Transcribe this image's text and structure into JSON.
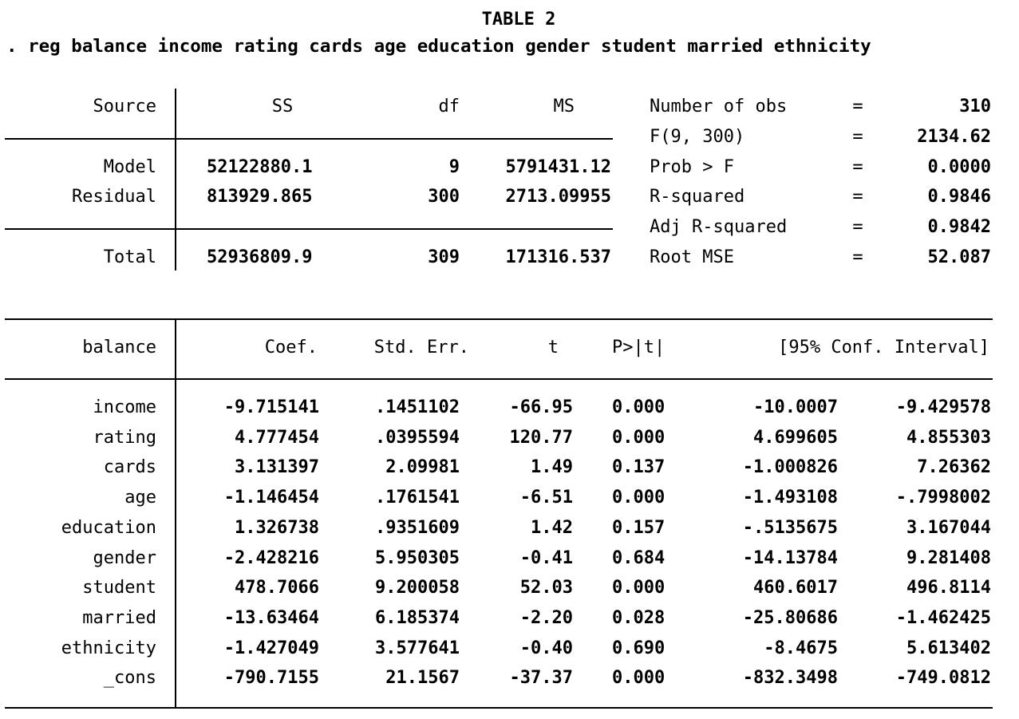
{
  "title": "TABLE 2",
  "command": ". reg balance income rating cards age education gender student married ethnicity",
  "anova": {
    "headers": {
      "source": "Source",
      "ss": "SS",
      "df": "df",
      "ms": "MS"
    },
    "rows": [
      {
        "source": "Model",
        "ss": "52122880.1",
        "df": "9",
        "ms": "5791431.12"
      },
      {
        "source": "Residual",
        "ss": "813929.865",
        "df": "300",
        "ms": "2713.09955"
      },
      {
        "source": "Total",
        "ss": "52936809.9",
        "df": "309",
        "ms": "171316.537"
      }
    ]
  },
  "stats": [
    {
      "label": "Number of obs",
      "eq": "=",
      "value": "310"
    },
    {
      "label": "F(9, 300)",
      "eq": "=",
      "value": "2134.62"
    },
    {
      "label": "Prob > F",
      "eq": "=",
      "value": "0.0000"
    },
    {
      "label": "R-squared",
      "eq": "=",
      "value": "0.9846"
    },
    {
      "label": "Adj R-squared",
      "eq": "=",
      "value": "0.9842"
    },
    {
      "label": "Root MSE",
      "eq": "=",
      "value": "52.087"
    }
  ],
  "coef": {
    "headers": {
      "var": "balance",
      "coef": "Coef.",
      "se": "Std. Err.",
      "t": "t",
      "p": "P>|t|",
      "ci": "[95% Conf. Interval]"
    },
    "rows": [
      {
        "var": "income",
        "coef": "-9.715141",
        "se": ".1451102",
        "t": "-66.95",
        "p": "0.000",
        "lo": "-10.0007",
        "hi": "-9.429578"
      },
      {
        "var": "rating",
        "coef": "4.777454",
        "se": ".0395594",
        "t": "120.77",
        "p": "0.000",
        "lo": "4.699605",
        "hi": "4.855303"
      },
      {
        "var": "cards",
        "coef": "3.131397",
        "se": "2.09981",
        "t": "1.49",
        "p": "0.137",
        "lo": "-1.000826",
        "hi": "7.26362"
      },
      {
        "var": "age",
        "coef": "-1.146454",
        "se": ".1761541",
        "t": "-6.51",
        "p": "0.000",
        "lo": "-1.493108",
        "hi": "-.7998002"
      },
      {
        "var": "education",
        "coef": "1.326738",
        "se": ".9351609",
        "t": "1.42",
        "p": "0.157",
        "lo": "-.5135675",
        "hi": "3.167044"
      },
      {
        "var": "gender",
        "coef": "-2.428216",
        "se": "5.950305",
        "t": "-0.41",
        "p": "0.684",
        "lo": "-14.13784",
        "hi": "9.281408"
      },
      {
        "var": "student",
        "coef": "478.7066",
        "se": "9.200058",
        "t": "52.03",
        "p": "0.000",
        "lo": "460.6017",
        "hi": "496.8114"
      },
      {
        "var": "married",
        "coef": "-13.63464",
        "se": "6.185374",
        "t": "-2.20",
        "p": "0.028",
        "lo": "-25.80686",
        "hi": "-1.462425"
      },
      {
        "var": "ethnicity",
        "coef": "-1.427049",
        "se": "3.577641",
        "t": "-0.40",
        "p": "0.690",
        "lo": "-8.4675",
        "hi": "5.613402"
      },
      {
        "var": "_cons",
        "coef": "-790.7155",
        "se": "21.1567",
        "t": "-37.37",
        "p": "0.000",
        "lo": "-832.3498",
        "hi": "-749.0812"
      }
    ]
  }
}
